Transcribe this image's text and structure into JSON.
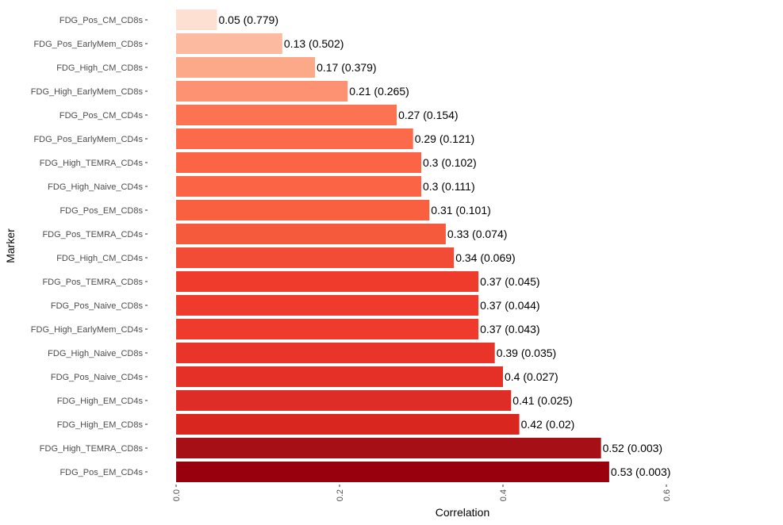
{
  "chart_data": {
    "type": "bar",
    "orientation": "horizontal",
    "xlabel": "Correlation",
    "ylabel": "Marker",
    "xlim": [
      0,
      0.6
    ],
    "x_ticks": [
      0.0,
      0.2,
      0.4,
      0.6
    ],
    "x_tick_labels": [
      "0.0",
      "0.2",
      "0.4",
      "0.6"
    ],
    "grid": false,
    "legend": "none",
    "categories": [
      "FDG_Pos_CM_CD8s",
      "FDG_Pos_EarlyMem_CD8s",
      "FDG_High_CM_CD8s",
      "FDG_High_EarlyMem_CD8s",
      "FDG_Pos_CM_CD4s",
      "FDG_Pos_EarlyMem_CD4s",
      "FDG_High_TEMRA_CD4s",
      "FDG_High_Naive_CD4s",
      "FDG_Pos_EM_CD8s",
      "FDG_Pos_TEMRA_CD4s",
      "FDG_High_CM_CD4s",
      "FDG_Pos_TEMRA_CD8s",
      "FDG_Pos_Naive_CD8s",
      "FDG_High_EarlyMem_CD4s",
      "FDG_High_Naive_CD8s",
      "FDG_Pos_Naive_CD4s",
      "FDG_High_EM_CD4s",
      "FDG_High_EM_CD8s",
      "FDG_High_TEMRA_CD8s",
      "FDG_Pos_EM_CD4s"
    ],
    "values": [
      0.05,
      0.13,
      0.17,
      0.21,
      0.27,
      0.29,
      0.3,
      0.3,
      0.31,
      0.33,
      0.34,
      0.37,
      0.37,
      0.37,
      0.39,
      0.4,
      0.41,
      0.42,
      0.52,
      0.53
    ],
    "pvalues": [
      0.779,
      0.502,
      0.379,
      0.265,
      0.154,
      0.121,
      0.102,
      0.111,
      0.101,
      0.074,
      0.069,
      0.045,
      0.044,
      0.043,
      0.035,
      0.027,
      0.025,
      0.02,
      0.003,
      0.003
    ],
    "bar_labels": [
      "0.05 (0.779)",
      "0.13 (0.502)",
      "0.17 (0.379)",
      "0.21 (0.265)",
      "0.27 (0.154)",
      "0.29 (0.121)",
      "0.3 (0.102)",
      "0.3 (0.111)",
      "0.31 (0.101)",
      "0.33 (0.074)",
      "0.34 (0.069)",
      "0.37 (0.045)",
      "0.37 (0.044)",
      "0.37 (0.043)",
      "0.39 (0.035)",
      "0.4 (0.027)",
      "0.41 (0.025)",
      "0.42 (0.02)",
      "0.52 (0.003)",
      "0.53 (0.003)"
    ],
    "colors": [
      "#fee0d2",
      "#fcbba1",
      "#fca98a",
      "#fc9272",
      "#fb7352",
      "#fb6a4a",
      "#fb6546",
      "#fb6546",
      "#f8603f",
      "#f45a3b",
      "#f24c36",
      "#ef3b2c",
      "#ef3b2c",
      "#ef3b2c",
      "#e9342a",
      "#e53027",
      "#de2d26",
      "#d9271f",
      "#a50f15",
      "#99000d"
    ]
  }
}
